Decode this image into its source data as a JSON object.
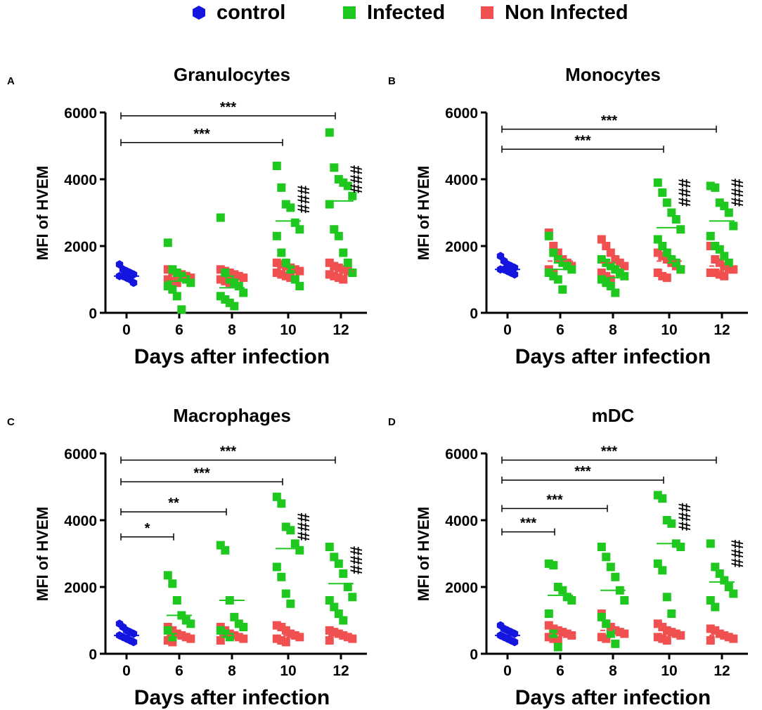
{
  "legend": [
    {
      "label": "control",
      "color": "#1515e0",
      "shape": "hexagon"
    },
    {
      "label": "Infected",
      "color": "#1ec81e",
      "shape": "square"
    },
    {
      "label": "Non Infected",
      "color": "#f05050",
      "shape": "square"
    }
  ],
  "chart_data": [
    {
      "panel_letter": "A",
      "type": "scatter",
      "title": "Granulocytes",
      "xlabel": "Days after infection",
      "ylabel": "MFI of HVEM",
      "categories": [
        "0",
        "6",
        "8",
        "10",
        "12"
      ],
      "ylim": [
        0,
        6000
      ],
      "yticks": [
        0,
        2000,
        4000,
        6000
      ],
      "series": [
        {
          "name": "control",
          "means": [
            1100,
            null,
            null,
            null,
            null
          ],
          "points": [
            [],
            [],
            [],
            [],
            []
          ]
        },
        {
          "name": "Infected",
          "means": [
            null,
            950,
            750,
            2750,
            3350
          ],
          "points": [
            [],
            [
              2100,
              1300,
              1200,
              1100,
              1000,
              900,
              800,
              700,
              500,
              100
            ],
            [
              2850,
              1200,
              1000,
              900,
              800,
              600,
              500,
              400,
              300,
              200
            ],
            [
              4400,
              3750,
              3250,
              3150,
              2700,
              2500,
              2300,
              1800,
              1500,
              1300,
              1000,
              800
            ],
            [
              5400,
              4350,
              4000,
              3900,
              3800,
              3500,
              3250,
              2500,
              2300,
              1800,
              1500,
              1200
            ]
          ]
        },
        {
          "name": "Non Infected",
          "means": [
            null,
            1050,
            1050,
            1300,
            1250
          ],
          "points": [
            [],
            [
              1300,
              1250,
              1200,
              1150,
              1100,
              1050,
              1000,
              950,
              900
            ],
            [
              1300,
              1250,
              1200,
              1150,
              1100,
              1050,
              1000,
              950,
              900
            ],
            [
              1500,
              1450,
              1400,
              1350,
              1300,
              1250,
              1200,
              1150,
              1100,
              1050
            ],
            [
              1500,
              1400,
              1350,
              1300,
              1250,
              1200,
              1150,
              1100,
              1050,
              1000
            ]
          ]
        }
      ],
      "control_points": [
        1450,
        1300,
        1250,
        1200,
        1150,
        1100,
        1100,
        1050,
        1000,
        900
      ],
      "significance": [
        {
          "from": "0",
          "to": "10",
          "label": "***",
          "y": 5100
        },
        {
          "from": "0",
          "to": "12",
          "label": "***",
          "y": 5900
        }
      ],
      "hash_marks": [
        {
          "category": "10",
          "label": "###",
          "y": 3400
        },
        {
          "category": "12",
          "label": "###",
          "y": 4000
        }
      ]
    },
    {
      "panel_letter": "B",
      "type": "scatter",
      "title": "Monocytes",
      "xlabel": "Days after infection",
      "ylabel": "MFI of HVEM",
      "categories": [
        "0",
        "6",
        "8",
        "10",
        "12"
      ],
      "ylim": [
        0,
        6000
      ],
      "yticks": [
        0,
        2000,
        4000,
        6000
      ],
      "series": [
        {
          "name": "control",
          "means": [
            1300,
            null,
            null,
            null,
            null
          ],
          "points": [
            [],
            [],
            [],
            [],
            []
          ]
        },
        {
          "name": "Infected",
          "means": [
            null,
            1300,
            1050,
            2550,
            2750
          ],
          "points": [
            [],
            [
              2300,
              1800,
              1600,
              1500,
              1400,
              1300,
              1200,
              1100,
              1000,
              700
            ],
            [
              1600,
              1500,
              1400,
              1300,
              1200,
              1100,
              1000,
              900,
              800,
              600
            ],
            [
              3900,
              3600,
              3300,
              3000,
              2800,
              2500,
              2200,
              2000,
              1800,
              1600,
              1500,
              1300
            ],
            [
              3800,
              3750,
              3300,
              3200,
              3000,
              2600,
              2300,
              2000,
              1900,
              1700,
              1500
            ]
          ]
        },
        {
          "name": "Non Infected",
          "means": [
            null,
            1550,
            1500,
            1550,
            1400
          ],
          "points": [
            [],
            [
              2400,
              2000,
              1800,
              1600,
              1500,
              1400,
              1300,
              1200
            ],
            [
              2200,
              2000,
              1800,
              1600,
              1500,
              1400,
              1200,
              1100,
              1000
            ],
            [
              1800,
              1700,
              1600,
              1500,
              1400,
              1300,
              1200,
              1100,
              1050
            ],
            [
              2000,
              1600,
              1500,
              1400,
              1300,
              1300,
              1200,
              1200,
              1150,
              1100
            ]
          ]
        }
      ],
      "control_points": [
        1700,
        1550,
        1450,
        1400,
        1350,
        1300,
        1300,
        1250,
        1200,
        1150
      ],
      "significance": [
        {
          "from": "0",
          "to": "10",
          "label": "***",
          "y": 4900
        },
        {
          "from": "0",
          "to": "12",
          "label": "***",
          "y": 5500
        }
      ],
      "hash_marks": [
        {
          "category": "10",
          "label": "###",
          "y": 3600
        },
        {
          "category": "12",
          "label": "###",
          "y": 3600
        }
      ]
    },
    {
      "panel_letter": "C",
      "type": "scatter",
      "title": "Macrophages",
      "xlabel": "Days after infection",
      "ylabel": "MFI of HVEM",
      "categories": [
        "0",
        "6",
        "8",
        "10",
        "12"
      ],
      "ylim": [
        0,
        6000
      ],
      "yticks": [
        0,
        2000,
        4000,
        6000
      ],
      "series": [
        {
          "name": "control",
          "means": [
            550,
            null,
            null,
            null,
            null
          ],
          "points": [
            [],
            [],
            [],
            [],
            []
          ]
        },
        {
          "name": "Infected",
          "means": [
            null,
            1150,
            1600,
            3150,
            2100
          ],
          "points": [
            [],
            [
              2350,
              2100,
              1600,
              1150,
              1000,
              900,
              700,
              500
            ],
            [
              3250,
              3100,
              1600,
              1100,
              900,
              800,
              700,
              600,
              500
            ],
            [
              4700,
              4500,
              3800,
              3700,
              3300,
              3100,
              2600,
              2300,
              1800,
              1500
            ],
            [
              3200,
              2900,
              2700,
              2400,
              2000,
              1700,
              1600,
              1400,
              1200,
              1000
            ]
          ]
        },
        {
          "name": "Non Infected",
          "means": [
            null,
            550,
            550,
            550,
            550
          ],
          "points": [
            [],
            [
              800,
              700,
              600,
              550,
              500,
              450,
              400,
              350
            ],
            [
              800,
              700,
              600,
              550,
              500,
              450,
              400
            ],
            [
              850,
              800,
              700,
              600,
              550,
              500,
              450,
              400,
              350
            ],
            [
              700,
              650,
              600,
              550,
              500,
              450,
              400
            ]
          ]
        }
      ],
      "control_points": [
        900,
        800,
        700,
        650,
        600,
        550,
        500,
        450,
        400,
        350
      ],
      "significance": [
        {
          "from": "0",
          "to": "6",
          "label": "*",
          "y": 3500
        },
        {
          "from": "0",
          "to": "8",
          "label": "**",
          "y": 4250
        },
        {
          "from": "0",
          "to": "10",
          "label": "***",
          "y": 5150
        },
        {
          "from": "0",
          "to": "12",
          "label": "***",
          "y": 5800
        }
      ],
      "hash_marks": [
        {
          "category": "10",
          "label": "###",
          "y": 3800
        },
        {
          "category": "12",
          "label": "###",
          "y": 2800
        }
      ]
    },
    {
      "panel_letter": "D",
      "type": "scatter",
      "title": "mDC",
      "xlabel": "Days after infection",
      "ylabel": "MFI of HVEM",
      "categories": [
        "0",
        "6",
        "8",
        "10",
        "12"
      ],
      "ylim": [
        0,
        6000
      ],
      "yticks": [
        0,
        2000,
        4000,
        6000
      ],
      "series": [
        {
          "name": "control",
          "means": [
            550,
            null,
            null,
            null,
            null
          ],
          "points": [
            [],
            [],
            [],
            [],
            []
          ]
        },
        {
          "name": "Infected",
          "means": [
            null,
            1750,
            1900,
            3300,
            2150
          ],
          "points": [
            [],
            [
              2700,
              2650,
              2000,
              1900,
              1700,
              1600,
              1200,
              600,
              200
            ],
            [
              3200,
              2900,
              2600,
              2300,
              1900,
              1600,
              1100,
              900,
              600,
              300
            ],
            [
              4750,
              4650,
              4000,
              3900,
              3300,
              3200,
              2700,
              2500,
              1700,
              1200
            ],
            [
              3300,
              2600,
              2400,
              2200,
              2000,
              1800,
              1600,
              1400
            ]
          ]
        },
        {
          "name": "Non Infected",
          "means": [
            null,
            600,
            700,
            600,
            550
          ],
          "points": [
            [],
            [
              850,
              750,
              700,
              650,
              600,
              550,
              500,
              450,
              400
            ],
            [
              1200,
              900,
              800,
              700,
              650,
              600,
              500,
              450
            ],
            [
              900,
              800,
              700,
              650,
              600,
              550,
              500,
              450,
              400
            ],
            [
              750,
              700,
              600,
              550,
              500,
              450,
              400
            ]
          ]
        }
      ],
      "control_points": [
        850,
        750,
        700,
        650,
        600,
        550,
        500,
        450,
        400,
        350
      ],
      "significance": [
        {
          "from": "0",
          "to": "6",
          "label": "***",
          "y": 3650
        },
        {
          "from": "0",
          "to": "8",
          "label": "***",
          "y": 4350
        },
        {
          "from": "0",
          "to": "10",
          "label": "***",
          "y": 5200
        },
        {
          "from": "0",
          "to": "12",
          "label": "***",
          "y": 5800
        }
      ],
      "hash_marks": [
        {
          "category": "10",
          "label": "###",
          "y": 4100
        },
        {
          "category": "12",
          "label": "###",
          "y": 3000
        }
      ]
    }
  ]
}
